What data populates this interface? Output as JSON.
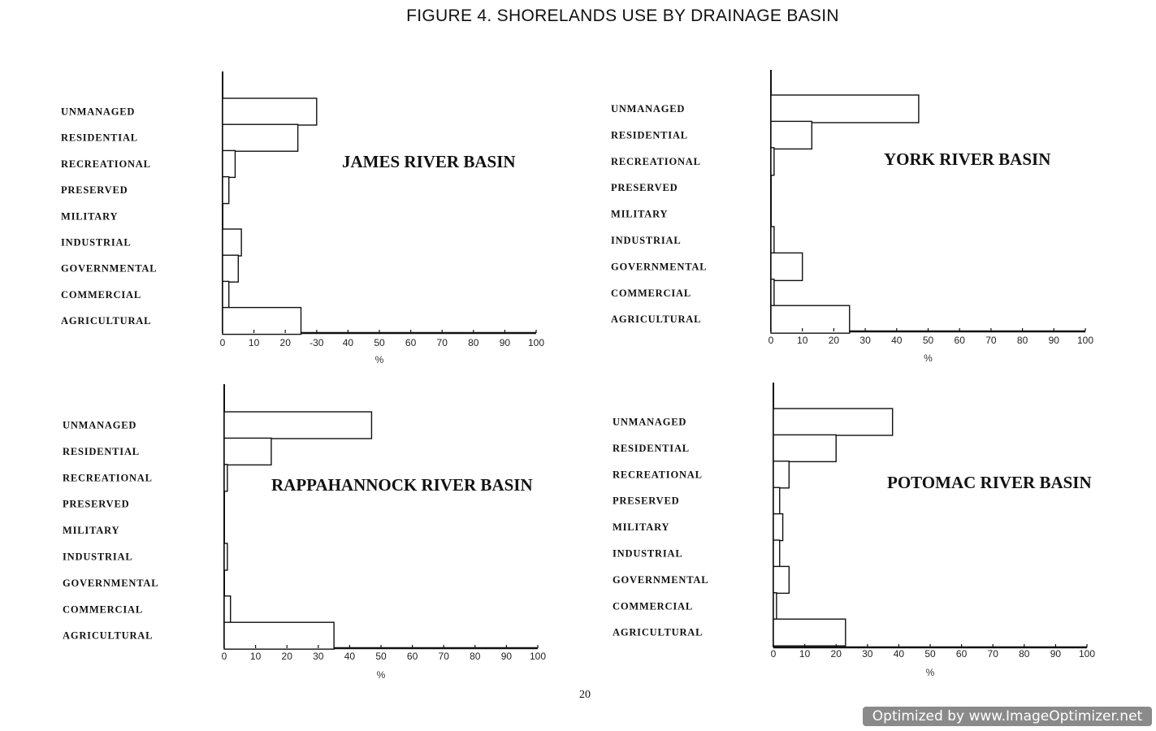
{
  "title": "FIGURE 4. SHORELANDS USE BY DRAINAGE BASIN",
  "page_number": "20",
  "watermark": "Optimized by www.ImageOptimizer.net",
  "chart_data": [
    {
      "type": "bar",
      "orientation": "horizontal",
      "title": "JAMES RIVER BASIN",
      "categories": [
        "UNMANAGED",
        "RESIDENTIAL",
        "RECREATIONAL",
        "PRESERVED",
        "MILITARY",
        "INDUSTRIAL",
        "GOVERNMENTAL",
        "COMMERCIAL",
        "AGRICULTURAL"
      ],
      "values": [
        30,
        24,
        4,
        2,
        0,
        6,
        5,
        2,
        25
      ],
      "xlabel": "%",
      "xlim": [
        0,
        100
      ],
      "xticks": [
        "0",
        "10",
        "20",
        "-30",
        "40",
        "50",
        "60",
        "70",
        "80",
        "90",
        "100"
      ],
      "grid": false
    },
    {
      "type": "bar",
      "orientation": "horizontal",
      "title": "YORK RIVER BASIN",
      "categories": [
        "UNMANAGED",
        "RESIDENTIAL",
        "RECREATIONAL",
        "PRESERVED",
        "MILITARY",
        "INDUSTRIAL",
        "GOVERNMENTAL",
        "COMMERCIAL",
        "AGRICULTURAL"
      ],
      "values": [
        47,
        13,
        1,
        0,
        0,
        1,
        10,
        1,
        25
      ],
      "xlabel": "%",
      "xlim": [
        0,
        100
      ],
      "xticks": [
        "0",
        "10",
        "20",
        "30",
        "40",
        "50",
        "60",
        "70",
        "80",
        "90",
        "100"
      ],
      "grid": false
    },
    {
      "type": "bar",
      "orientation": "horizontal",
      "title": "RAPPAHANNOCK RIVER BASIN",
      "categories": [
        "UNMANAGED",
        "RESIDENTIAL",
        "RECREATIONAL",
        "PRESERVED",
        "MILITARY",
        "INDUSTRIAL",
        "GOVERNMENTAL",
        "COMMERCIAL",
        "AGRICULTURAL"
      ],
      "values": [
        47,
        15,
        1,
        0,
        0,
        1,
        0,
        2,
        35
      ],
      "xlabel": "%",
      "xlim": [
        0,
        100
      ],
      "xticks": [
        "0",
        "10",
        "20",
        "30",
        "40",
        "50",
        "60",
        "70",
        "80",
        "90",
        "100"
      ],
      "grid": false
    },
    {
      "type": "bar",
      "orientation": "horizontal",
      "title": "POTOMAC RIVER BASIN",
      "categories": [
        "UNMANAGED",
        "RESIDENTIAL",
        "RECREATIONAL",
        "PRESERVED",
        "MILITARY",
        "INDUSTRIAL",
        "GOVERNMENTAL",
        "COMMERCIAL",
        "AGRICULTURAL"
      ],
      "values": [
        38,
        20,
        5,
        2,
        3,
        2,
        5,
        1,
        23
      ],
      "xlabel": "%",
      "xlim": [
        0,
        100
      ],
      "xticks": [
        "0",
        "10",
        "20",
        "30",
        "40",
        "50",
        "60",
        "70",
        "80",
        "90",
        "100"
      ],
      "grid": false
    }
  ]
}
